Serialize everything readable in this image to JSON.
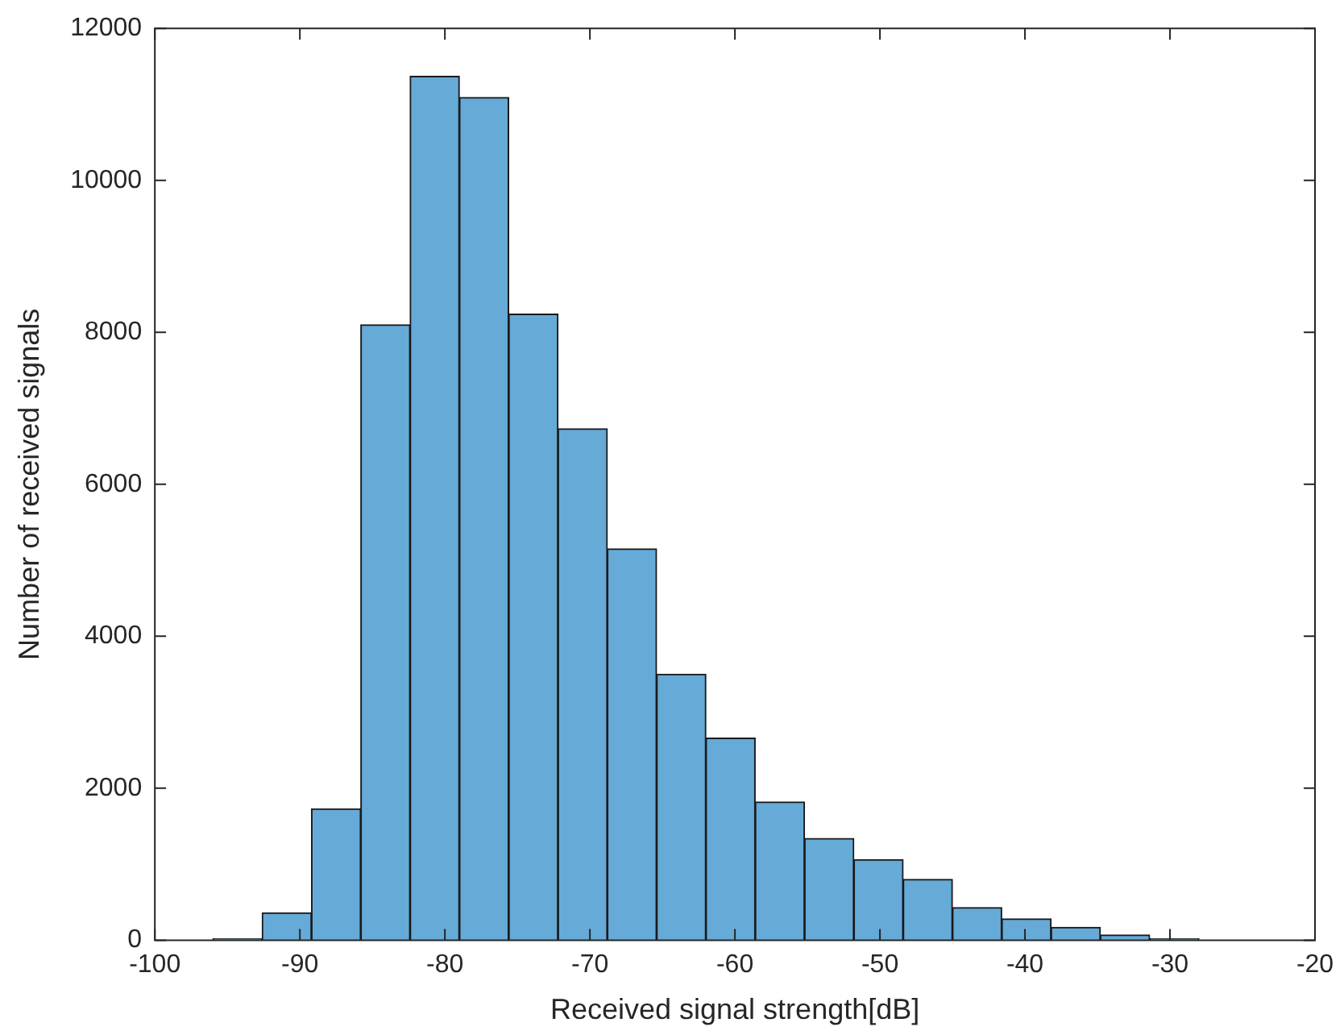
{
  "chart_data": {
    "type": "histogram",
    "xlabel": "Received signal strength[dB]",
    "ylabel": "Number of received signals",
    "bins": [
      -96,
      -92.6,
      -89.2,
      -85.8,
      -82.4,
      -79,
      -75.6,
      -72.2,
      -68.8,
      -65.4,
      -62,
      -58.6,
      -55.2,
      -51.8,
      -48.4,
      -45,
      -41.6,
      -38.2,
      -34.8,
      -31.4,
      -28
    ],
    "values": [
      20,
      360,
      1730,
      8100,
      11370,
      11090,
      8240,
      6730,
      5150,
      3500,
      2660,
      1820,
      1340,
      1060,
      800,
      430,
      280,
      170,
      70,
      20
    ],
    "color": "#66aad7",
    "xlim": [
      -100,
      -20
    ],
    "xticks": [
      -100,
      -90,
      -80,
      -70,
      -60,
      -50,
      -40,
      -30,
      -20
    ],
    "ylim": [
      0,
      12000
    ],
    "yticks": [
      0,
      2000,
      4000,
      6000,
      8000,
      10000,
      12000
    ],
    "grid": false,
    "legend": false
  }
}
